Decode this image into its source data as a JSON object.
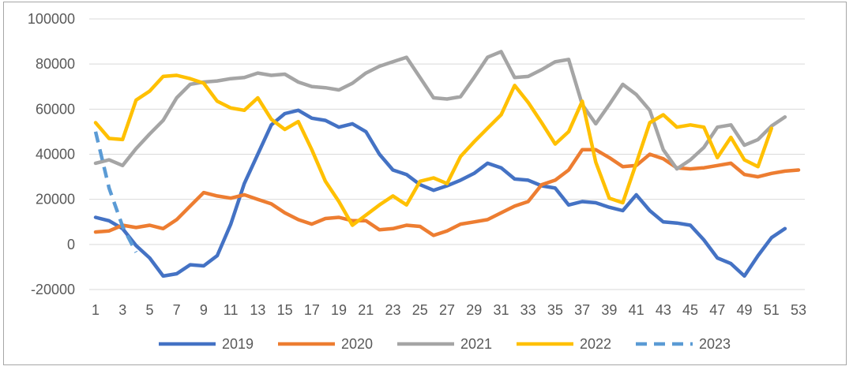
{
  "chart_data": {
    "type": "line",
    "title": "",
    "xlabel": "",
    "ylabel": "",
    "x": [
      1,
      2,
      3,
      4,
      5,
      6,
      7,
      8,
      9,
      10,
      11,
      12,
      13,
      14,
      15,
      16,
      17,
      18,
      19,
      20,
      21,
      22,
      23,
      24,
      25,
      26,
      27,
      28,
      29,
      30,
      31,
      32,
      33,
      34,
      35,
      36,
      37,
      38,
      39,
      40,
      41,
      42,
      43,
      44,
      45,
      46,
      47,
      48,
      49,
      50,
      51,
      52,
      53
    ],
    "x_tick_labels": [
      "1",
      "3",
      "5",
      "7",
      "9",
      "11",
      "13",
      "15",
      "17",
      "19",
      "21",
      "23",
      "25",
      "27",
      "29",
      "31",
      "33",
      "35",
      "37",
      "39",
      "41",
      "43",
      "45",
      "47",
      "49",
      "51",
      "53"
    ],
    "ylim": [
      -20000,
      100000
    ],
    "y_ticks": [
      "-20000",
      "0",
      "20000",
      "40000",
      "60000",
      "80000",
      "100000"
    ],
    "grid": true,
    "legend_position": "bottom",
    "series": [
      {
        "name": "2019",
        "color": "#4472c4",
        "dash": false,
        "values": [
          12000,
          10500,
          7000,
          -500,
          -6000,
          -14000,
          -13000,
          -9000,
          -9500,
          -5000,
          9000,
          27000,
          40000,
          53000,
          58000,
          59500,
          56000,
          55000,
          52000,
          53500,
          50000,
          40000,
          33000,
          31000,
          26500,
          24000,
          26000,
          28500,
          31500,
          36000,
          34000,
          29000,
          28500,
          26000,
          25000,
          17500,
          19000,
          18500,
          16500,
          15000,
          22000,
          15000,
          10000,
          9500,
          8500,
          2000,
          -6000,
          -8500,
          -14000,
          -5000,
          3000,
          7000,
          null
        ]
      },
      {
        "name": "2020",
        "color": "#ed7d31",
        "dash": false,
        "values": [
          5500,
          6000,
          8500,
          7500,
          8500,
          7000,
          11000,
          17000,
          23000,
          21500,
          20500,
          22000,
          20000,
          18000,
          14000,
          11000,
          9000,
          11500,
          12000,
          10500,
          10500,
          6500,
          7000,
          8500,
          8000,
          4000,
          6000,
          9000,
          10000,
          11000,
          14000,
          17000,
          19000,
          26500,
          28500,
          33000,
          42000,
          42000,
          38500,
          34500,
          35000,
          40000,
          38000,
          34000,
          33500,
          34000,
          35000,
          36000,
          31000,
          30000,
          31500,
          32500,
          33000
        ]
      },
      {
        "name": "2021",
        "color": "#a5a5a5",
        "dash": false,
        "values": [
          36000,
          37500,
          35000,
          42500,
          49000,
          55000,
          65000,
          71000,
          72000,
          72500,
          73500,
          74000,
          76000,
          75000,
          75500,
          72000,
          70000,
          69500,
          68500,
          71500,
          76000,
          79000,
          81000,
          83000,
          74000,
          65000,
          64500,
          65500,
          74000,
          83000,
          85500,
          74000,
          74500,
          77500,
          81000,
          82000,
          62000,
          53500,
          62000,
          71000,
          66500,
          59500,
          42000,
          33500,
          37500,
          43000,
          52000,
          53000,
          44000,
          46500,
          52500,
          56500,
          null
        ]
      },
      {
        "name": "2022",
        "color": "#ffc000",
        "dash": false,
        "values": [
          54000,
          47000,
          46500,
          64000,
          68000,
          74500,
          75000,
          73500,
          71500,
          63500,
          60500,
          59500,
          65000,
          55500,
          51000,
          54500,
          42000,
          28000,
          19000,
          8500,
          13000,
          17500,
          21500,
          17500,
          28000,
          29500,
          27000,
          39000,
          45500,
          51500,
          57500,
          70500,
          63000,
          54000,
          44500,
          50000,
          63500,
          36500,
          20500,
          18500,
          36000,
          54000,
          57500,
          52000,
          53000,
          52000,
          38500,
          47500,
          37500,
          34500,
          51500,
          null,
          null
        ]
      },
      {
        "name": "2023",
        "color": "#5b9bd5",
        "dash": true,
        "values": [
          50000,
          25000,
          8000,
          -3500,
          null,
          null,
          null,
          null,
          null,
          null,
          null,
          null,
          null,
          null,
          null,
          null,
          null,
          null,
          null,
          null,
          null,
          null,
          null,
          null,
          null,
          null,
          null,
          null,
          null,
          null,
          null,
          null,
          null,
          null,
          null,
          null,
          null,
          null,
          null,
          null,
          null,
          null,
          null,
          null,
          null,
          null,
          null,
          null,
          null,
          null,
          null,
          null,
          null
        ]
      }
    ]
  }
}
